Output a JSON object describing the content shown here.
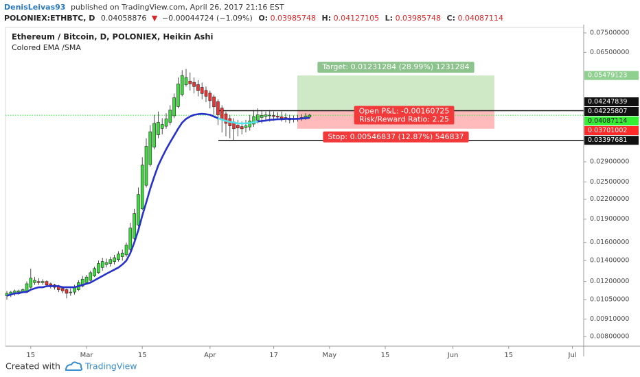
{
  "header": {
    "author": "DenisLeivas93",
    "published": "published on TradingView.com, April 26, 2017 21:16 EST",
    "symbol": "POLONIEX:ETHBTC, D",
    "last": "0.04058876",
    "arrow": "▼",
    "change": "−0.00044724 (−1.09%)",
    "o_label": "O:",
    "open": "0.03985748",
    "h_label": "H:",
    "high": "0.04127105",
    "l_label": "L:",
    "low": "0.03985748",
    "c_label": "C:",
    "close": "0.04087114"
  },
  "footer": {
    "created": "Created with",
    "brand": "TradingView"
  },
  "chart_data": {
    "type": "candlestick",
    "title": "Ethereum / Bitcoin, D, POLONIEX, Heikin Ashi",
    "indicator": "Colored EMA /SMA",
    "log_scale": true,
    "ylim": [
      0.00745,
      0.0781
    ],
    "yticks": [
      {
        "value": 0.075,
        "label": "0.07500000"
      },
      {
        "value": 0.065,
        "label": "0.06500000"
      },
      {
        "value": 0.029,
        "label": "0.02900000"
      },
      {
        "value": 0.025,
        "label": "0.02500000"
      },
      {
        "value": 0.022,
        "label": "0.02200000"
      },
      {
        "value": 0.019,
        "label": "0.01900000"
      },
      {
        "value": 0.016,
        "label": "0.01600000"
      },
      {
        "value": 0.014,
        "label": "0.01400000"
      },
      {
        "value": 0.012,
        "label": "0.01200000"
      },
      {
        "value": 0.0105,
        "label": "0.01050000"
      },
      {
        "value": 0.0091,
        "label": "0.00910000"
      },
      {
        "value": 0.008,
        "label": "0.00800000"
      }
    ],
    "categories": [
      null,
      null,
      null,
      null,
      null,
      null,
      "15",
      null,
      null,
      null,
      null,
      null,
      null,
      null,
      null,
      null,
      null,
      null,
      null,
      null,
      "Mar",
      null,
      null,
      null,
      null,
      null,
      null,
      null,
      null,
      null,
      null,
      null,
      null,
      null,
      "15",
      null,
      null,
      null,
      null,
      null,
      null,
      null,
      null,
      null,
      null,
      null,
      null,
      null,
      null,
      null,
      null,
      "Apr",
      null,
      null,
      null,
      null,
      null,
      null,
      null,
      null,
      null,
      null,
      null,
      null,
      null,
      null,
      null,
      "17",
      null,
      null,
      null,
      null,
      null,
      null,
      null,
      null,
      null,
      null,
      null,
      null,
      null,
      "May",
      null,
      null,
      null,
      null,
      null,
      null,
      null,
      null,
      null,
      null,
      null,
      null,
      null,
      "15",
      null,
      null,
      null,
      null,
      null,
      null,
      null,
      null,
      null,
      null,
      null,
      null,
      null,
      null,
      null,
      null,
      "Jun",
      null,
      null,
      null,
      null,
      null,
      null,
      null,
      null,
      null,
      null,
      null,
      null,
      null,
      "15",
      null,
      null,
      null,
      null,
      null,
      null,
      null,
      null,
      null,
      null,
      null,
      null,
      null,
      null,
      null,
      "Jul",
      null,
      null
    ],
    "up_color": "#3cdc3c",
    "down_color": "#f03030",
    "ohlc": [
      [
        0.0108,
        0.0112,
        0.0105,
        0.011
      ],
      [
        0.0109,
        0.0112,
        0.0107,
        0.0111
      ],
      [
        0.011,
        0.0113,
        0.0108,
        0.0112
      ],
      [
        0.0111,
        0.0113,
        0.0109,
        0.0112
      ],
      [
        0.0111,
        0.0114,
        0.011,
        0.0113
      ],
      [
        0.0112,
        0.012,
        0.0111,
        0.0118
      ],
      [
        0.0115,
        0.0132,
        0.0114,
        0.0123
      ],
      [
        0.0119,
        0.0124,
        0.0117,
        0.0121
      ],
      [
        0.012,
        0.0123,
        0.0117,
        0.0119
      ],
      [
        0.0119,
        0.0122,
        0.0117,
        0.012
      ],
      [
        0.012,
        0.0121,
        0.0115,
        0.0117
      ],
      [
        0.0118,
        0.0119,
        0.0114,
        0.0116
      ],
      [
        0.0117,
        0.0118,
        0.0113,
        0.0115
      ],
      [
        0.0116,
        0.0117,
        0.0111,
        0.0113
      ],
      [
        0.0114,
        0.0116,
        0.011,
        0.0112
      ],
      [
        0.0113,
        0.0114,
        0.0106,
        0.011
      ],
      [
        0.0111,
        0.0114,
        0.0108,
        0.0111
      ],
      [
        0.0111,
        0.0117,
        0.0109,
        0.0115
      ],
      [
        0.0113,
        0.0121,
        0.0112,
        0.0119
      ],
      [
        0.0116,
        0.0125,
        0.0115,
        0.0122
      ],
      [
        0.0119,
        0.0126,
        0.0118,
        0.0124
      ],
      [
        0.0121,
        0.013,
        0.012,
        0.0128
      ],
      [
        0.0125,
        0.0134,
        0.0124,
        0.0132
      ],
      [
        0.0128,
        0.014,
        0.0127,
        0.0137
      ],
      [
        0.0133,
        0.0143,
        0.013,
        0.0139
      ],
      [
        0.0136,
        0.0142,
        0.0133,
        0.0138
      ],
      [
        0.0137,
        0.0144,
        0.0134,
        0.0141
      ],
      [
        0.0139,
        0.0146,
        0.0136,
        0.0143
      ],
      [
        0.0141,
        0.015,
        0.0139,
        0.0147
      ],
      [
        0.0144,
        0.0152,
        0.014,
        0.0148
      ],
      [
        0.0146,
        0.016,
        0.0144,
        0.0157
      ],
      [
        0.0152,
        0.0185,
        0.015,
        0.0178
      ],
      [
        0.0165,
        0.0205,
        0.0163,
        0.0198
      ],
      [
        0.0182,
        0.024,
        0.018,
        0.0228
      ],
      [
        0.0205,
        0.03,
        0.0203,
        0.0283
      ],
      [
        0.0244,
        0.0345,
        0.024,
        0.0325
      ],
      [
        0.0284,
        0.038,
        0.028,
        0.0362
      ],
      [
        0.0323,
        0.041,
        0.0318,
        0.0385
      ],
      [
        0.0354,
        0.042,
        0.0345,
        0.0388
      ],
      [
        0.0371,
        0.04,
        0.0355,
        0.0382
      ],
      [
        0.0377,
        0.0415,
        0.037,
        0.0398
      ],
      [
        0.0388,
        0.044,
        0.038,
        0.0425
      ],
      [
        0.0407,
        0.048,
        0.04,
        0.0465
      ],
      [
        0.0436,
        0.054,
        0.043,
        0.0515
      ],
      [
        0.0476,
        0.057,
        0.047,
        0.0548
      ],
      [
        0.0512,
        0.0575,
        0.0505,
        0.054
      ],
      [
        0.0526,
        0.056,
        0.049,
        0.0515
      ],
      [
        0.0521,
        0.054,
        0.048,
        0.0505
      ],
      [
        0.0513,
        0.053,
        0.047,
        0.049
      ],
      [
        0.0502,
        0.052,
        0.046,
        0.048
      ],
      [
        0.0491,
        0.0505,
        0.045,
        0.047
      ],
      [
        0.0481,
        0.049,
        0.043,
        0.0455
      ],
      [
        0.0468,
        0.0475,
        0.041,
        0.0435
      ],
      [
        0.0452,
        0.046,
        0.038,
        0.041
      ],
      [
        0.0431,
        0.044,
        0.036,
        0.0395
      ],
      [
        0.0413,
        0.042,
        0.035,
        0.0385
      ],
      [
        0.0399,
        0.041,
        0.0345,
        0.0378
      ],
      [
        0.0389,
        0.04,
        0.034,
        0.037
      ],
      [
        0.038,
        0.0395,
        0.035,
        0.0372
      ],
      [
        0.0376,
        0.039,
        0.0355,
        0.037
      ],
      [
        0.0373,
        0.0395,
        0.036,
        0.0378
      ],
      [
        0.0375,
        0.041,
        0.0365,
        0.0392
      ],
      [
        0.0383,
        0.0425,
        0.0375,
        0.0405
      ],
      [
        0.0394,
        0.043,
        0.0385,
        0.041
      ],
      [
        0.0402,
        0.0425,
        0.0385,
        0.0408
      ],
      [
        0.0405,
        0.042,
        0.039,
        0.041
      ],
      [
        0.0407,
        0.0425,
        0.039,
        0.0409
      ],
      [
        0.0408,
        0.042,
        0.0392,
        0.0405
      ],
      [
        0.0406,
        0.0418,
        0.0395,
        0.0403
      ],
      [
        0.0404,
        0.042,
        0.039,
        0.04
      ],
      [
        0.0402,
        0.0415,
        0.0388,
        0.0398
      ],
      [
        0.04,
        0.041,
        0.0385,
        0.0395
      ],
      [
        0.0398,
        0.0408,
        0.0388,
        0.0396
      ],
      [
        0.0397,
        0.041,
        0.039,
        0.04
      ],
      [
        0.0398,
        0.0412,
        0.0392,
        0.0402
      ],
      [
        0.04,
        0.0415,
        0.0395,
        0.0406
      ],
      [
        0.0403,
        0.0413,
        0.0399,
        0.0409
      ],
      null,
      null,
      null,
      null,
      null,
      null,
      null,
      null,
      null,
      null,
      null,
      null,
      null,
      null,
      null,
      null,
      null,
      null,
      null,
      null,
      null,
      null,
      null,
      null,
      null,
      null,
      null,
      null,
      null,
      null,
      null,
      null,
      null,
      null,
      null,
      null,
      null,
      null,
      null,
      null,
      null,
      null,
      null,
      null,
      null,
      null,
      null,
      null,
      null,
      null,
      null,
      null,
      null,
      null,
      null,
      null,
      null,
      null,
      null,
      null,
      null,
      null,
      null,
      null,
      null,
      null,
      null,
      null
    ],
    "lines": [
      {
        "color": "#2531c9",
        "values": [
          0.0108,
          0.0109,
          0.011,
          0.011,
          0.0111,
          0.0111,
          0.0113,
          0.0114,
          0.0115,
          0.0115,
          0.0116,
          0.0116,
          0.0116,
          0.0116,
          0.0115,
          0.0115,
          0.0115,
          0.0115,
          0.0116,
          0.0117,
          0.0118,
          0.0119,
          0.0121,
          0.0123,
          0.0125,
          0.0127,
          0.0129,
          0.0131,
          0.0133,
          0.0136,
          0.014,
          0.0148,
          0.016,
          0.0175,
          0.0195,
          0.0215,
          0.0238,
          0.026,
          0.0282,
          0.03,
          0.0318,
          0.0335,
          0.0352,
          0.037,
          0.0387,
          0.0398,
          0.0405,
          0.041,
          0.0412,
          0.0413,
          0.0412,
          0.041,
          0.0405,
          0.04,
          null,
          null,
          null,
          null,
          null,
          null,
          null,
          null,
          null,
          0.039,
          0.0392,
          0.0393,
          0.0395,
          0.0396,
          0.0397,
          0.0397,
          0.0398,
          0.0398,
          0.0398,
          0.0398,
          0.0399,
          0.04,
          0.0401,
          null,
          null,
          null,
          null,
          null,
          null,
          null,
          null,
          null,
          null,
          null,
          null,
          null,
          null,
          null,
          null,
          null,
          null,
          null,
          null,
          null,
          null,
          null,
          null,
          null,
          null,
          null,
          null,
          null,
          null,
          null,
          null,
          null,
          null,
          null,
          null,
          null,
          null,
          null,
          null,
          null,
          null,
          null,
          null,
          null,
          null,
          null,
          null,
          null,
          null,
          null,
          null,
          null,
          null,
          null,
          null,
          null,
          null,
          null,
          null,
          null,
          null,
          null,
          null,
          null,
          null,
          null,
          null
        ]
      },
      {
        "color": "#4fe3ea",
        "values": [
          null,
          null,
          null,
          null,
          null,
          null,
          null,
          null,
          null,
          null,
          null,
          null,
          null,
          null,
          null,
          null,
          null,
          null,
          null,
          null,
          null,
          null,
          null,
          null,
          null,
          null,
          null,
          null,
          null,
          null,
          null,
          null,
          null,
          null,
          null,
          null,
          null,
          null,
          null,
          null,
          null,
          null,
          null,
          null,
          null,
          null,
          null,
          null,
          null,
          null,
          null,
          null,
          null,
          0.04,
          0.0396,
          0.0392,
          0.0389,
          0.0387,
          0.0385,
          0.0385,
          0.0385,
          0.0386,
          0.0388,
          0.039,
          null,
          null,
          null,
          null,
          null,
          null,
          null,
          null,
          null,
          null,
          null,
          null,
          null,
          null,
          null,
          null,
          null,
          null,
          null,
          null,
          null,
          null,
          null,
          null,
          null,
          null,
          null,
          null,
          null,
          null,
          null,
          null,
          null,
          null,
          null,
          null,
          null,
          null,
          null,
          null,
          null,
          null,
          null,
          null,
          null,
          null,
          null,
          null,
          null,
          null,
          null,
          null,
          null,
          null,
          null,
          null,
          null,
          null,
          null,
          null,
          null,
          null,
          null,
          null,
          null,
          null,
          null,
          null,
          null,
          null,
          null,
          null,
          null,
          null,
          null,
          null,
          null,
          null,
          null,
          null,
          null
        ]
      }
    ],
    "price_labels": [
      {
        "value": 0.05479123,
        "bg": "#8fcf8f",
        "fg": "#ffffff"
      },
      {
        "value": 0.04247839,
        "bg": "#111111",
        "fg": "#ffffff"
      },
      {
        "value": 0.04225807,
        "bg": "#111111",
        "fg": "#ffffff",
        "line": "solid"
      },
      {
        "value": 0.04087114,
        "bg": "#33ee33",
        "fg": "#111111",
        "line": "dotted"
      },
      {
        "value": 0.03701002,
        "bg": "#ff2a2a",
        "fg": "#ffffff"
      },
      {
        "value": 0.03397681,
        "bg": "#111111",
        "fg": "#ffffff",
        "line": "solid"
      }
    ],
    "position": {
      "entry": 0.04247839,
      "target": 0.05479123,
      "stop": 0.03701002,
      "target_label": "Target: 0.01231284 (28.99%) 1231284",
      "pnl_label": "Open P&L: -0.00160725",
      "ratio_label": "Risk/Reward Ratio: 2.25",
      "stop_label": "Stop: 0.00546837 (12.87%) 546837",
      "target_color": "#8dc48d",
      "stop_color": "#f23a3a",
      "profit_fill": "rgba(140,200,120,0.42)",
      "loss_fill": "rgba(255,120,120,0.5)"
    }
  }
}
